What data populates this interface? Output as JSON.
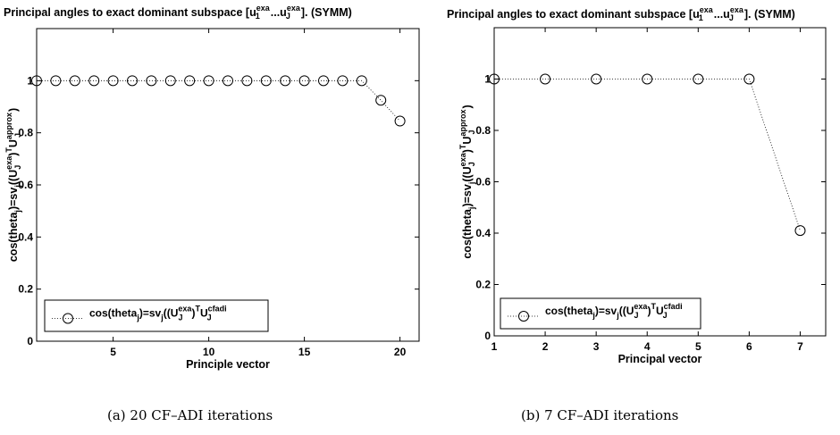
{
  "chart_data": [
    {
      "type": "line",
      "title_main": "Principal angles to exact dominant subspace [u",
      "title_sub1": "1",
      "title_sup1": "exa",
      "title_mid": "...u",
      "title_subJ": "J",
      "title_sup2": "exa",
      "title_end": "]. (SYMM)",
      "xlabel": "Principle vector",
      "ylabel_pre": "cos(theta",
      "ylabel_sub_j": "j",
      "ylabel_mid": ")=sv",
      "ylabel_mid2": "((U",
      "ylabel_sub_J": "J",
      "ylabel_sup_exa": "exa",
      "ylabel_close": ")",
      "ylabel_sup_T": "T",
      "ylabel_U": "U",
      "ylabel_sup_approx": "approx",
      "ylabel_end": ")",
      "legend_pre": "cos(theta",
      "legend_sub_j": "j",
      "legend_mid": ")=sv",
      "legend_mid2": "((U",
      "legend_sub_J": "J",
      "legend_sup_exa": "exa",
      "legend_close": ")",
      "legend_sup_T": "T",
      "legend_U": "U",
      "legend_sup_cfadi": "cfadi",
      "xlim": [
        1,
        21
      ],
      "ylim": [
        0,
        1.2
      ],
      "xticks": [
        5,
        10,
        15,
        20
      ],
      "yticks": [
        0,
        0.2,
        0.4,
        0.6,
        0.8,
        1
      ],
      "ytick_labels": [
        "0",
        "0.2",
        "0.4",
        "0.6",
        "0.8",
        "1"
      ],
      "x": [
        1,
        2,
        3,
        4,
        5,
        6,
        7,
        8,
        9,
        10,
        11,
        12,
        13,
        14,
        15,
        16,
        17,
        18,
        19,
        20
      ],
      "y": [
        1,
        1,
        1,
        1,
        1,
        1,
        1,
        1,
        1,
        1,
        1,
        1,
        1,
        1,
        1,
        1,
        1,
        1,
        0.925,
        0.845
      ],
      "legend_position": "bottom-left",
      "grid": false
    },
    {
      "type": "line",
      "title_main": "Principal angles to exact dominant subspace [u",
      "title_sub1": "1",
      "title_sup1": "exa",
      "title_mid": "...u",
      "title_subJ": "J",
      "title_sup2": "exa",
      "title_end": "]. (SYMM)",
      "xlabel": "Principal vector",
      "ylabel_pre": "cos(theta",
      "ylabel_sub_j": "j",
      "ylabel_mid": ")=sv",
      "ylabel_mid2": "((U",
      "ylabel_sub_J": "J",
      "ylabel_sup_exa": "exa",
      "ylabel_close": ")",
      "ylabel_sup_T": "T",
      "ylabel_U": "U",
      "ylabel_sup_approx": "approx",
      "ylabel_end": ")",
      "legend_pre": "cos(theta",
      "legend_sub_j": "j",
      "legend_mid": ")=sv",
      "legend_mid2": "((U",
      "legend_sub_J": "J",
      "legend_sup_exa": "exa",
      "legend_close": ")",
      "legend_sup_T": "T",
      "legend_U": "U",
      "legend_sup_cfadi": "cfadi",
      "xlim": [
        1,
        7.5
      ],
      "ylim": [
        0,
        1.2
      ],
      "xticks": [
        1,
        2,
        3,
        4,
        5,
        6,
        7
      ],
      "yticks": [
        0,
        0.2,
        0.4,
        0.6,
        0.8,
        1
      ],
      "ytick_labels": [
        "0",
        "0.2",
        "0.4",
        "0.6",
        "0.8",
        "1"
      ],
      "x": [
        1,
        2,
        3,
        4,
        5,
        6,
        7
      ],
      "y": [
        1,
        1,
        1,
        1,
        1,
        1,
        0.41
      ],
      "legend_position": "bottom-left",
      "grid": false
    }
  ],
  "captions": {
    "a": "(a) 20 CF–ADI iterations",
    "b": "(b) 7 CF–ADI iterations"
  }
}
